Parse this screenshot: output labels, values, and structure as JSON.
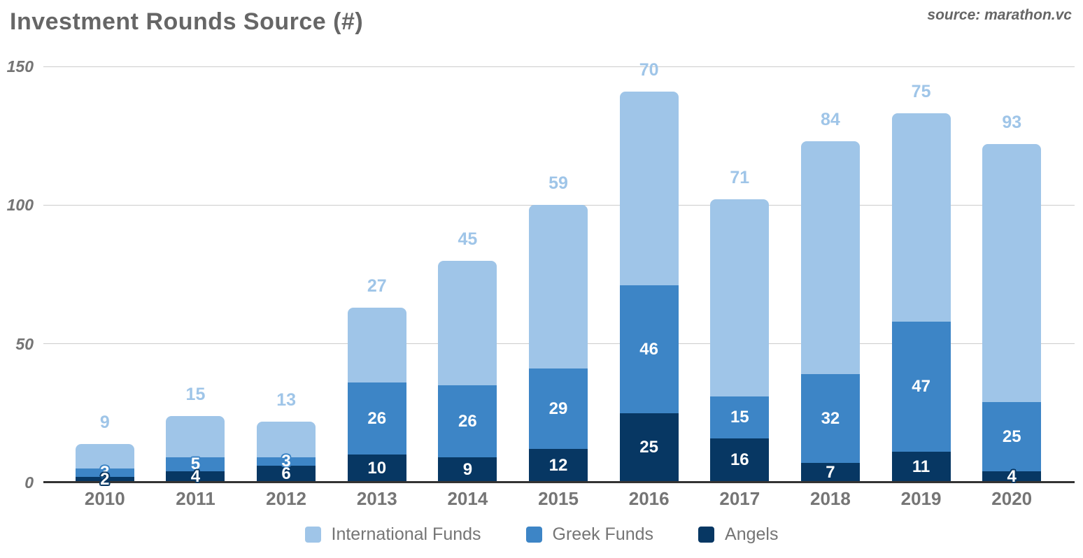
{
  "header": {
    "title": "Investment Rounds Source (#)",
    "source": "source: marathon.vc"
  },
  "chart_data": {
    "type": "bar",
    "stacked": true,
    "title": "Investment Rounds Source (#)",
    "xlabel": "",
    "ylabel": "",
    "categories": [
      "2010",
      "2011",
      "2012",
      "2013",
      "2014",
      "2015",
      "2016",
      "2017",
      "2018",
      "2019",
      "2020"
    ],
    "series": [
      {
        "name": "International Funds",
        "color": "#9fc5e8",
        "values": [
          9,
          15,
          13,
          27,
          45,
          59,
          70,
          71,
          84,
          75,
          93
        ]
      },
      {
        "name": "Greek Funds",
        "color": "#3d85c6",
        "values": [
          3,
          5,
          3,
          26,
          26,
          29,
          46,
          15,
          32,
          47,
          25
        ]
      },
      {
        "name": "Angels",
        "color": "#073763",
        "values": [
          2,
          4,
          6,
          10,
          9,
          12,
          25,
          16,
          7,
          11,
          4
        ]
      }
    ],
    "totals": [
      14,
      24,
      22,
      63,
      80,
      100,
      141,
      102,
      123,
      133,
      122
    ],
    "ylim": [
      0,
      150
    ],
    "yticks": [
      0,
      50,
      100,
      150
    ],
    "grid": true,
    "legend_position": "bottom",
    "label_colors": {
      "top_label": "#9fc5e8",
      "inside_label": "#ffffff"
    },
    "axis_colors": {
      "gridline": "#cccccc",
      "baseline": "#333333",
      "tick_text": "#757575"
    }
  },
  "legend": {
    "items": [
      {
        "label": "International Funds",
        "color": "#9fc5e8"
      },
      {
        "label": "Greek Funds",
        "color": "#3d85c6"
      },
      {
        "label": "Angels",
        "color": "#073763"
      }
    ]
  }
}
